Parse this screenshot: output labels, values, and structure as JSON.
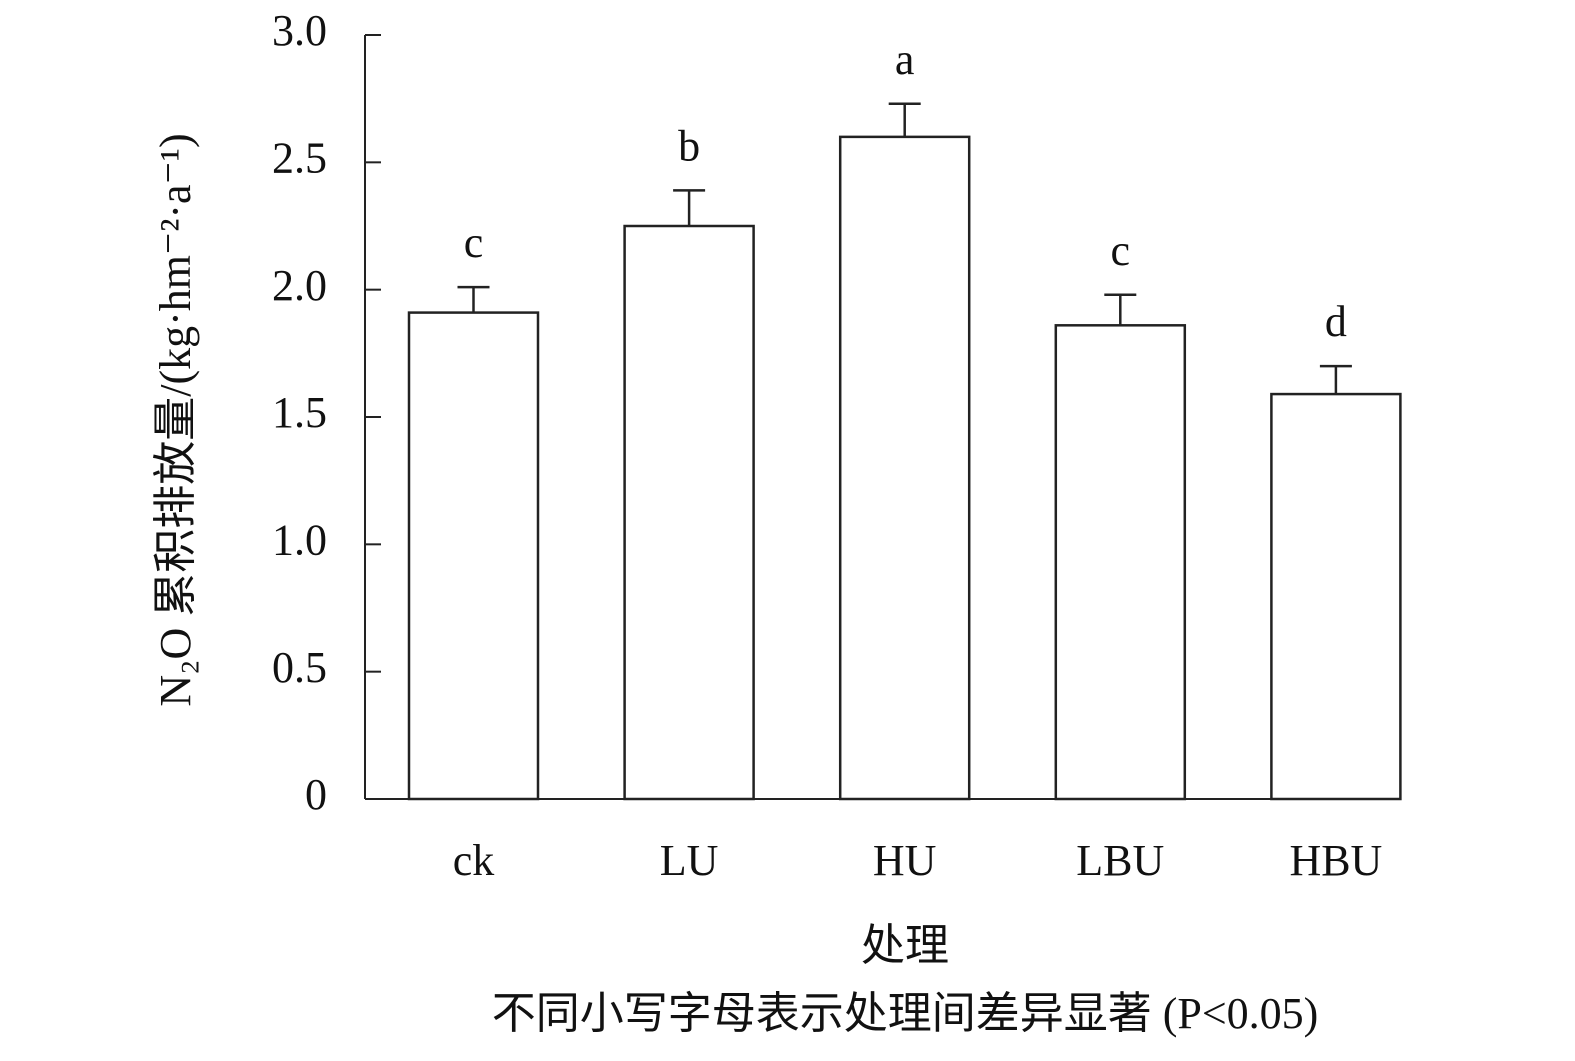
{
  "chart_data": {
    "type": "bar",
    "y_label": "N₂O 累积排放量/(kg·hm⁻²·a⁻¹)",
    "x_label": "处理",
    "note": "不同小写字母表示处理间差异显著 (P<0.05)",
    "categories": [
      "ck",
      "LU",
      "HU",
      "LBU",
      "HBU"
    ],
    "values": [
      1.91,
      2.25,
      2.6,
      1.86,
      1.59
    ],
    "errors": [
      0.1,
      0.14,
      0.13,
      0.12,
      0.11
    ],
    "annotations": [
      "c",
      "b",
      "a",
      "c",
      "d"
    ],
    "color": "#ffffff",
    "ylim": [
      0,
      3.0
    ],
    "yticks": [
      0,
      {
        "value": 0.5,
        "label": "0.5"
      },
      {
        "value": 1.0,
        "label": "1.0"
      },
      {
        "value": 1.5,
        "label": "1.5"
      },
      {
        "value": 2.0,
        "label": "2.0"
      },
      {
        "value": 2.5,
        "label": "2.5"
      },
      {
        "value": 3.0,
        "label": "3.0"
      }
    ],
    "grid": false
  }
}
